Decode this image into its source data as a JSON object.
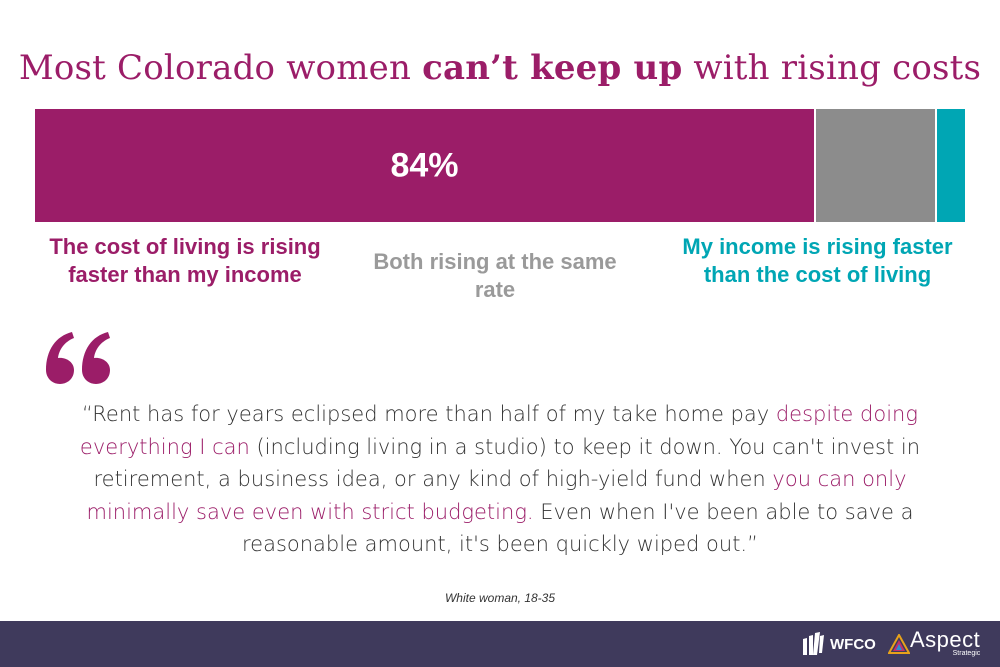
{
  "title": {
    "prefix": "Most Colorado women ",
    "bold": "can’t keep up",
    "suffix": " with rising costs"
  },
  "chart_data": {
    "type": "bar",
    "orientation": "horizontal-stacked-100",
    "categories": [
      "The cost of living is rising faster than my income",
      "Both rising at the same rate",
      "My income is rising faster than the cost of living"
    ],
    "values": [
      84,
      13,
      3
    ],
    "data_labels": [
      "84%",
      "",
      ""
    ],
    "colors": [
      "#9b1d68",
      "#8c8c8c",
      "#00a6b4"
    ],
    "label_colors": [
      "#9b1d68",
      "#9a9a9a",
      "#00a6b4"
    ]
  },
  "quote": {
    "open": "“Rent has for years eclipsed more than half of my take home pay ",
    "hl1": "despite doing everything I can",
    "mid1": " (including living in a studio) to keep it down. You can't invest in retirement, a business idea, or any kind of high-yield fund when ",
    "hl2": "you can only minimally save even with strict budgeting.",
    "close": " Even when I've been able to save a reasonable amount, it's been quickly wiped out.”"
  },
  "attribution": "White woman, 18-35",
  "footer": {
    "logo1": "WFCO",
    "logo2_main": "Aspect",
    "logo2_sub": "Strategic",
    "background": "#3f3a5c"
  },
  "colors": {
    "brand": "#9b1d68",
    "neutral": "#8c8c8c",
    "teal": "#00a6b4"
  }
}
